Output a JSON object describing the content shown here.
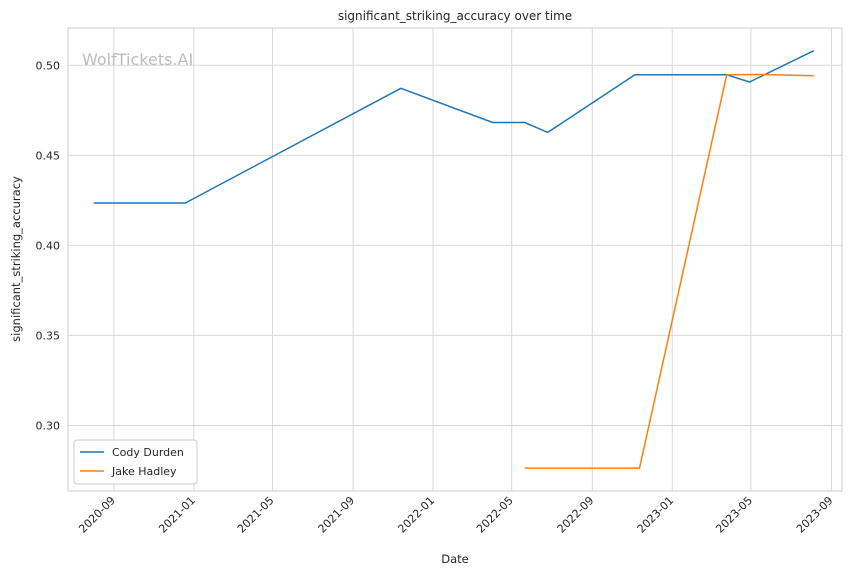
{
  "chart_data": {
    "type": "line",
    "title": "significant_striking_accuracy over time",
    "xlabel": "Date",
    "ylabel": "significant_striking_accuracy",
    "watermark": "WolfTickets.AI",
    "x_ticks": [
      "2020-09",
      "2021-01",
      "2021-05",
      "2021-09",
      "2022-01",
      "2022-05",
      "2022-09",
      "2023-01",
      "2023-05",
      "2023-09"
    ],
    "y_ticks": [
      "0.30",
      "0.35",
      "0.40",
      "0.45",
      "0.50"
    ],
    "xlim": [
      "2020-06-23",
      "2023-09-17"
    ],
    "ylim": [
      0.2636,
      0.5207
    ],
    "grid": true,
    "legend_position": "lower-left",
    "series": [
      {
        "name": "Cody Durden",
        "color": "#1f77b4",
        "points": [
          {
            "x": "2020-08-01",
            "y": 0.4235
          },
          {
            "x": "2020-12-19",
            "y": 0.4235
          },
          {
            "x": "2021-11-13",
            "y": 0.4872
          },
          {
            "x": "2022-04-02",
            "y": 0.4682
          },
          {
            "x": "2022-05-21",
            "y": 0.4682
          },
          {
            "x": "2022-06-25",
            "y": 0.4627
          },
          {
            "x": "2022-11-05",
            "y": 0.4947
          },
          {
            "x": "2023-03-25",
            "y": 0.4947
          },
          {
            "x": "2023-04-29",
            "y": 0.4907
          },
          {
            "x": "2023-08-05",
            "y": 0.5081
          }
        ]
      },
      {
        "name": "Jake Hadley",
        "color": "#ff7f0e",
        "points": [
          {
            "x": "2022-05-21",
            "y": 0.2763
          },
          {
            "x": "2022-11-12",
            "y": 0.2763
          },
          {
            "x": "2023-03-25",
            "y": 0.4947
          },
          {
            "x": "2023-05-20",
            "y": 0.4949
          },
          {
            "x": "2023-08-05",
            "y": 0.4942
          }
        ]
      }
    ]
  }
}
